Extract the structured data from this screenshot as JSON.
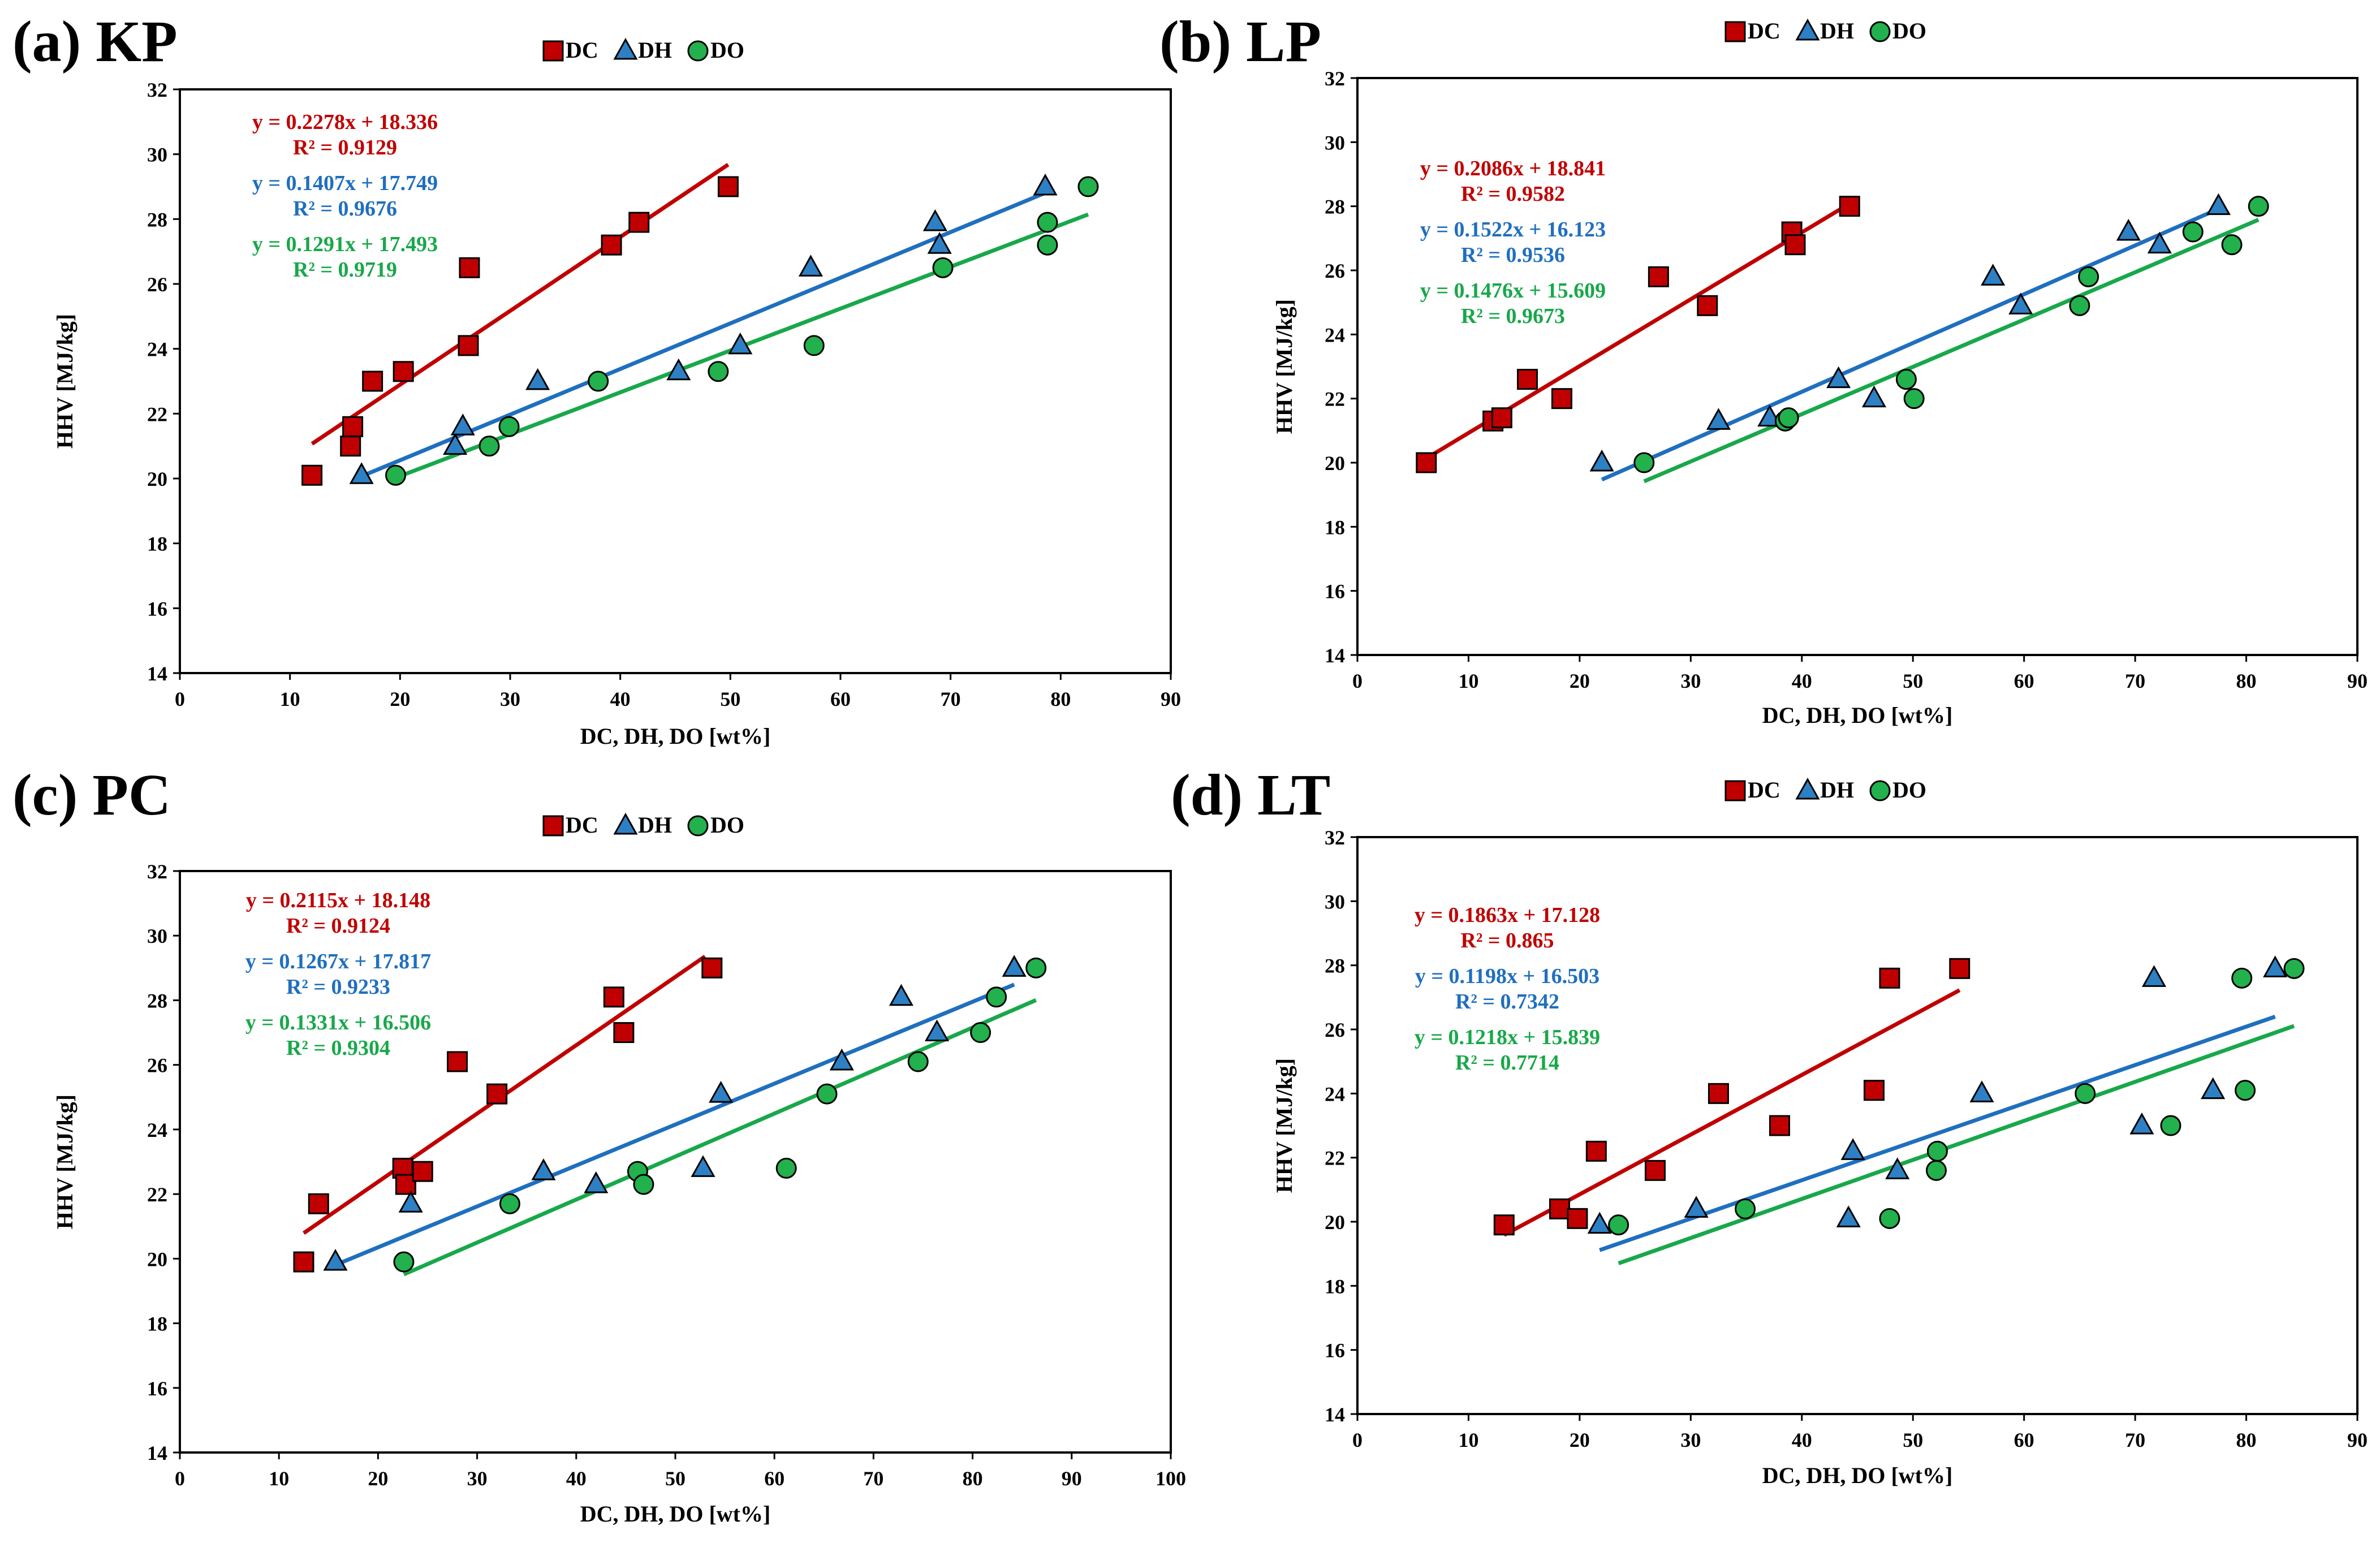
{
  "colors": {
    "DC_line": "#C00000",
    "DC_marker": "#C00000",
    "DH_line": "#1F6FBF",
    "DH_marker": "#2E80C4",
    "DO_line": "#18A84A",
    "DO_marker": "#22B14C",
    "DC_text": "#C00000",
    "DH_text": "#1F6FBF",
    "DO_text": "#18A84A"
  },
  "chart_data": [
    {
      "type": "scatter",
      "panel_label": "(a) KP",
      "xlabel": "DC, DH, DO [wt%]",
      "ylabel": "HHV [MJ/kg]",
      "xlim": [
        0,
        90
      ],
      "ylim": [
        14,
        32
      ],
      "xticks": [
        "0",
        "10",
        "20",
        "30",
        "40",
        "50",
        "60",
        "70",
        "80",
        "90"
      ],
      "yticks": [
        "14",
        "16",
        "18",
        "20",
        "22",
        "24",
        "26",
        "28",
        "30",
        "32"
      ],
      "legend": [
        "DC",
        "DH",
        "DO"
      ],
      "legend_position": "top-center",
      "series": [
        {
          "name": "DC",
          "marker": "square",
          "color": "#C00000",
          "x": [
            12.0,
            15.5,
            15.7,
            17.5,
            20.3,
            26.2,
            26.3,
            39.2,
            41.7,
            49.8
          ],
          "y": [
            20.1,
            21.0,
            21.6,
            23.0,
            23.3,
            24.1,
            26.5,
            27.2,
            27.9,
            29.0
          ],
          "fit_x": [
            12.0,
            49.8
          ],
          "equation": "y = 0.2278x + 18.336",
          "r2": "R² = 0.9129"
        },
        {
          "name": "DH",
          "marker": "triangle",
          "color": "#2E80C4",
          "x": [
            16.5,
            25.0,
            25.7,
            32.5,
            45.3,
            50.9,
            57.3,
            68.6,
            69.0,
            78.6
          ],
          "y": [
            20.1,
            21.0,
            21.6,
            23.0,
            23.3,
            24.1,
            26.5,
            27.9,
            27.2,
            29.0
          ],
          "fit_x": [
            16.5,
            78.6
          ],
          "equation": "y = 0.1407x + 17.749",
          "r2": "R² = 0.9676"
        },
        {
          "name": "DO",
          "marker": "circle",
          "color": "#22B14C",
          "x": [
            19.6,
            28.1,
            29.9,
            38.0,
            48.9,
            57.6,
            69.3,
            78.8,
            78.8,
            82.5
          ],
          "y": [
            20.1,
            21.0,
            21.6,
            23.0,
            23.3,
            24.1,
            26.5,
            27.9,
            27.2,
            29.0
          ],
          "fit_x": [
            19.6,
            82.5
          ],
          "equation": "y = 0.1291x + 17.493",
          "r2": "R² = 0.9719"
        }
      ]
    },
    {
      "type": "scatter",
      "panel_label": "(b) LP",
      "xlabel": "DC, DH, DO [wt%]",
      "ylabel": "HHV [MJ/kg]",
      "xlim": [
        0,
        90
      ],
      "ylim": [
        14,
        32
      ],
      "xticks": [
        "0",
        "10",
        "20",
        "30",
        "40",
        "50",
        "60",
        "70",
        "80",
        "90"
      ],
      "yticks": [
        "14",
        "16",
        "18",
        "20",
        "22",
        "24",
        "26",
        "28",
        "30",
        "32"
      ],
      "legend": [
        "DC",
        "DH",
        "DO"
      ],
      "legend_position": "top-center",
      "series": [
        {
          "name": "DC",
          "marker": "square",
          "color": "#C00000",
          "x": [
            6.2,
            12.2,
            13.0,
            15.3,
            18.4,
            27.1,
            31.5,
            39.1,
            39.4,
            44.3
          ],
          "y": [
            20.0,
            21.3,
            21.4,
            22.6,
            22.0,
            25.8,
            24.9,
            27.2,
            26.8,
            28.0
          ],
          "fit_x": [
            6.2,
            44.3
          ],
          "equation": "y = 0.2086x + 18.841",
          "r2": "R² = 0.9582"
        },
        {
          "name": "DH",
          "marker": "triangle",
          "color": "#2E80C4",
          "x": [
            22.0,
            32.5,
            37.1,
            43.3,
            46.5,
            57.2,
            59.7,
            69.4,
            72.2,
            77.5
          ],
          "y": [
            20.0,
            21.3,
            21.4,
            22.6,
            22.0,
            25.8,
            24.9,
            27.2,
            26.8,
            28.0
          ],
          "fit_x": [
            22.0,
            77.5
          ],
          "equation": "y = 0.1522x + 16.123",
          "r2": "R² = 0.9536"
        },
        {
          "name": "DO",
          "marker": "circle",
          "color": "#22B14C",
          "x": [
            25.8,
            38.5,
            38.8,
            49.4,
            50.1,
            65.0,
            65.8,
            75.2,
            78.7,
            81.1
          ],
          "y": [
            20.0,
            21.3,
            21.4,
            22.6,
            22.0,
            24.9,
            25.8,
            27.2,
            26.8,
            28.0
          ],
          "fit_x": [
            25.8,
            81.1
          ],
          "equation": "y = 0.1476x + 15.609",
          "r2": "R² = 0.9673"
        }
      ]
    },
    {
      "type": "scatter",
      "panel_label": "(c) PC",
      "xlabel": "DC, DH, DO [wt%]",
      "ylabel": "HHV [MJ/kg]",
      "xlim": [
        0,
        100
      ],
      "ylim": [
        14,
        32
      ],
      "xticks": [
        "0",
        "10",
        "20",
        "30",
        "40",
        "50",
        "60",
        "70",
        "80",
        "90",
        "100"
      ],
      "yticks": [
        "14",
        "16",
        "18",
        "20",
        "22",
        "24",
        "26",
        "28",
        "30",
        "32"
      ],
      "legend": [
        "DC",
        "DH",
        "DO"
      ],
      "legend_position": "top-center",
      "series": [
        {
          "name": "DC",
          "marker": "square",
          "color": "#C00000",
          "x": [
            12.5,
            14.0,
            22.5,
            22.8,
            24.5,
            28.0,
            32.0,
            43.8,
            44.8,
            53.7
          ],
          "y": [
            19.9,
            21.7,
            22.8,
            22.3,
            22.7,
            26.1,
            25.1,
            28.1,
            27.0,
            29.0
          ],
          "fit_x": [
            12.5,
            53.0
          ],
          "equation": "y = 0.2115x + 18.148",
          "r2": "R² = 0.9124"
        },
        {
          "name": "DH",
          "marker": "triangle",
          "color": "#2E80C4",
          "x": [
            15.7,
            23.3,
            36.7,
            42.0,
            52.8,
            54.6,
            66.8,
            72.8,
            76.4,
            84.2
          ],
          "y": [
            19.9,
            21.7,
            22.7,
            22.3,
            22.8,
            25.1,
            26.1,
            28.1,
            27.0,
            29.0
          ],
          "fit_x": [
            15.7,
            84.2
          ],
          "equation": "y = 0.1267x + 17.817",
          "r2": "R² = 0.9233"
        },
        {
          "name": "DO",
          "marker": "circle",
          "color": "#22B14C",
          "x": [
            22.6,
            33.3,
            46.2,
            46.8,
            61.2,
            65.3,
            74.5,
            80.8,
            82.4,
            86.4
          ],
          "y": [
            19.9,
            21.7,
            22.7,
            22.3,
            22.8,
            25.1,
            26.1,
            27.0,
            28.1,
            29.0
          ],
          "fit_x": [
            22.6,
            86.4
          ],
          "equation": "y = 0.1331x + 16.506",
          "r2": "R² = 0.9304"
        }
      ]
    },
    {
      "type": "scatter",
      "panel_label": "(d) LT",
      "xlabel": "DC, DH, DO [wt%]",
      "ylabel": "HHV [MJ/kg]",
      "xlim": [
        0,
        90
      ],
      "ylim": [
        14,
        32
      ],
      "xticks": [
        "0",
        "10",
        "20",
        "30",
        "40",
        "50",
        "60",
        "70",
        "80",
        "90"
      ],
      "yticks": [
        "14",
        "16",
        "18",
        "20",
        "22",
        "24",
        "26",
        "28",
        "30",
        "32"
      ],
      "legend": [
        "DC",
        "DH",
        "DO"
      ],
      "legend_position": "top-center",
      "series": [
        {
          "name": "DC",
          "marker": "square",
          "color": "#C00000",
          "x": [
            13.2,
            18.2,
            19.8,
            21.5,
            26.8,
            32.5,
            38.0,
            46.5,
            47.9,
            54.2
          ],
          "y": [
            19.9,
            20.4,
            20.1,
            22.2,
            21.6,
            24.0,
            23.0,
            24.1,
            27.6,
            27.9
          ],
          "fit_x": [
            13.2,
            54.2
          ],
          "equation": "y = 0.1863x + 17.128",
          "r2": "R² = 0.865"
        },
        {
          "name": "DH",
          "marker": "triangle",
          "color": "#2E80C4",
          "x": [
            21.8,
            30.5,
            44.2,
            44.6,
            48.6,
            56.2,
            70.6,
            71.7,
            77.0,
            82.6
          ],
          "y": [
            19.9,
            20.4,
            20.1,
            22.2,
            21.6,
            24.0,
            23.0,
            27.6,
            24.1,
            27.9
          ],
          "fit_x": [
            21.8,
            82.6
          ],
          "equation": "y = 0.1198x + 16.503",
          "r2": "R² = 0.7342"
        },
        {
          "name": "DO",
          "marker": "circle",
          "color": "#22B14C",
          "x": [
            23.5,
            34.9,
            47.9,
            52.1,
            52.2,
            65.5,
            73.2,
            79.6,
            79.9,
            84.3
          ],
          "y": [
            19.9,
            20.4,
            20.1,
            21.6,
            22.2,
            24.0,
            23.0,
            27.6,
            24.1,
            27.9
          ],
          "fit_x": [
            23.5,
            84.3
          ],
          "equation": "y = 0.1218x + 15.839",
          "r2": "R² = 0.7714"
        }
      ]
    }
  ]
}
